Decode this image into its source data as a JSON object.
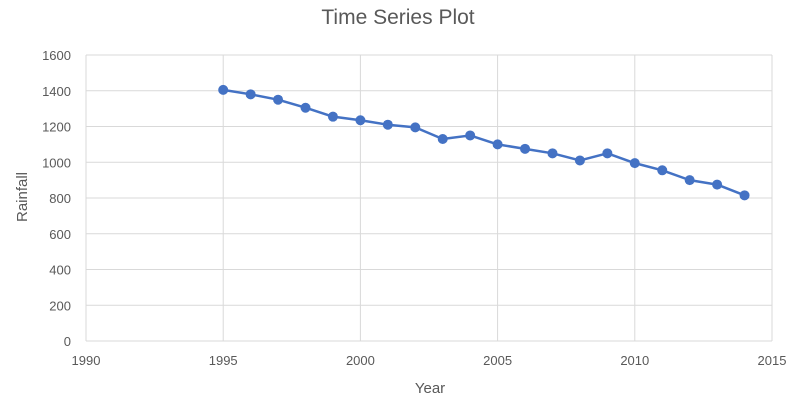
{
  "chart_data": {
    "type": "line",
    "title": "Time Series Plot",
    "xlabel": "Year",
    "ylabel": "Rainfall",
    "xlim": [
      1990,
      2015
    ],
    "ylim": [
      0,
      1600
    ],
    "x_ticks": [
      1990,
      1995,
      2000,
      2005,
      2010,
      2015
    ],
    "y_ticks": [
      0,
      200,
      400,
      600,
      800,
      1000,
      1200,
      1400,
      1600
    ],
    "grid": true,
    "legend": "none",
    "series_color": "#4472C4",
    "grid_color": "#d9d9d9",
    "x": [
      1995,
      1996,
      1997,
      1998,
      1999,
      2000,
      2001,
      2002,
      2003,
      2004,
      2005,
      2006,
      2007,
      2008,
      2009,
      2010,
      2011,
      2012,
      2013,
      2014
    ],
    "series": [
      {
        "values": [
          1405,
          1380,
          1350,
          1305,
          1255,
          1235,
          1210,
          1195,
          1130,
          1150,
          1100,
          1075,
          1050,
          1010,
          1050,
          995,
          955,
          900,
          875,
          815
        ]
      }
    ]
  }
}
